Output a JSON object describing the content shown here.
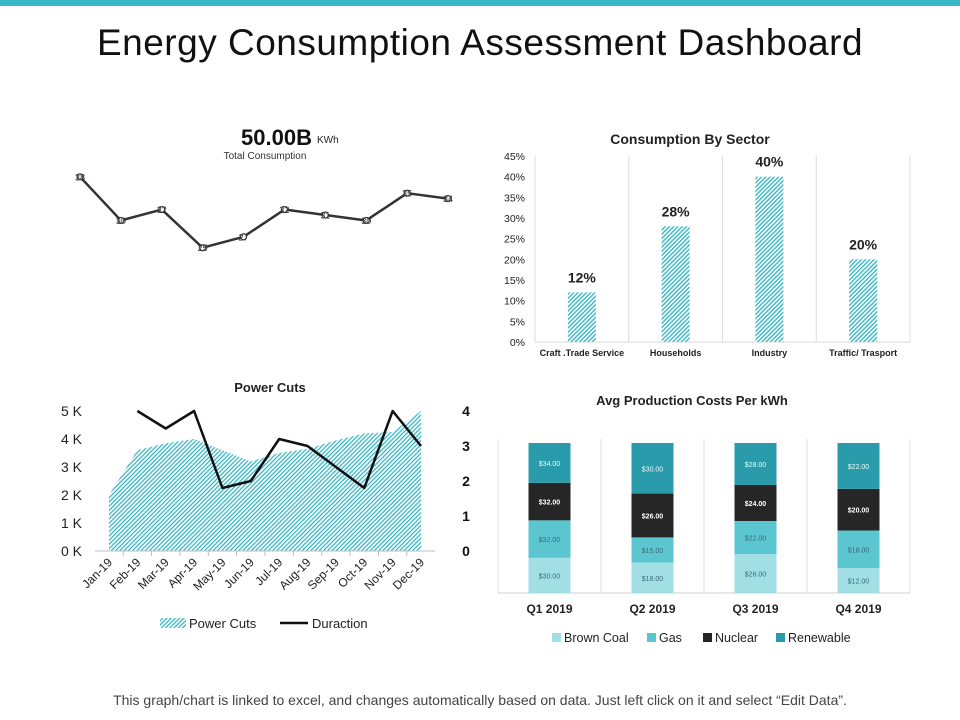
{
  "page": {
    "title": "Energy Consumption Assessment Dashboard",
    "footer": "This graph/chart is linked to excel, and changes automatically based on data.  Just left click on it and select “Edit Data”.",
    "accent_color": "#39b8c6"
  },
  "chart_data": [
    {
      "id": "total_consumption",
      "type": "line",
      "headline_value": "50.00B",
      "headline_unit": "KWh",
      "subtitle": "Total Consumption",
      "values": [
        38,
        30,
        32,
        25,
        27,
        32,
        31,
        30,
        35,
        34
      ],
      "labels": [
        "38",
        "30",
        "32",
        "25",
        "27",
        "32",
        "31",
        "30",
        "35",
        "34"
      ],
      "ylim": [
        20,
        42
      ],
      "color": "#333333"
    },
    {
      "id": "consumption_by_sector",
      "type": "bar",
      "title": "Consumption By Sector",
      "categories": [
        "Craft .Trade Service",
        "Households",
        "Industry",
        "Traffic/ Trasport"
      ],
      "values": [
        12,
        28,
        40,
        20
      ],
      "value_labels": [
        "12%",
        "28%",
        "40%",
        "20%"
      ],
      "yticks": [
        "0%",
        "5%",
        "10%",
        "15%",
        "20%",
        "25%",
        "30%",
        "35%",
        "40%",
        "45%"
      ],
      "ylim": [
        0,
        45
      ],
      "color": "#39b8c6"
    },
    {
      "id": "power_cuts",
      "type": "area",
      "title": "Power Cuts",
      "categories": [
        "Jan-19",
        "Feb-19",
        "Mar-19",
        "Apr-19",
        "May-19",
        "Jun-19",
        "Jul-19",
        "Aug-19",
        "Sep-19",
        "Oct-19",
        "Nov-19",
        "Dec-19"
      ],
      "series": [
        {
          "name": "Power Cuts",
          "type": "area",
          "axis": "left",
          "values": [
            2000,
            3600,
            3850,
            4000,
            3600,
            3200,
            3500,
            3650,
            3950,
            4200,
            4250,
            5000
          ]
        },
        {
          "name": "Duraction",
          "type": "line",
          "axis": "right",
          "values": [
            null,
            4,
            3.5,
            4,
            1.8,
            2,
            3.2,
            3,
            2.4,
            1.8,
            4,
            3
          ]
        }
      ],
      "left_ticks": [
        "0 K",
        "1 K",
        "2 K",
        "3 K",
        "4 K",
        "5 K"
      ],
      "right_ticks": [
        "0",
        "1",
        "2",
        "3",
        "4"
      ],
      "ylim_left": [
        0,
        5000
      ],
      "ylim_right": [
        0,
        4
      ],
      "area_color": "#39b8c6",
      "line_color": "#111111"
    },
    {
      "id": "avg_production_costs",
      "type": "bar",
      "stacked": true,
      "title": "Avg Production Costs Per kWh",
      "categories": [
        "Q1 2019",
        "Q2 2019",
        "Q3 2019",
        "Q4 2019"
      ],
      "series": [
        {
          "name": "Brown Coal",
          "color": "#a2dfe4",
          "values": [
            30,
            18,
            26,
            12
          ],
          "labels": [
            "$30.00",
            "$18.00",
            "$26.00",
            "$12.00"
          ]
        },
        {
          "name": "Gas",
          "color": "#5cc6d0",
          "values": [
            32,
            15,
            22,
            18
          ],
          "labels": [
            "$32.00",
            "$15.00",
            "$22.00",
            "$18.00"
          ]
        },
        {
          "name": "Nuclear",
          "color": "#262626",
          "values": [
            32,
            26,
            24,
            20
          ],
          "labels": [
            "$32.00",
            "$26.00",
            "$24.00",
            "$20.00"
          ]
        },
        {
          "name": "Renewable",
          "color": "#2a9baa",
          "values": [
            34,
            30,
            28,
            22
          ],
          "labels": [
            "$34.00",
            "$30.00",
            "$28.00",
            "$22.00"
          ]
        }
      ]
    }
  ]
}
